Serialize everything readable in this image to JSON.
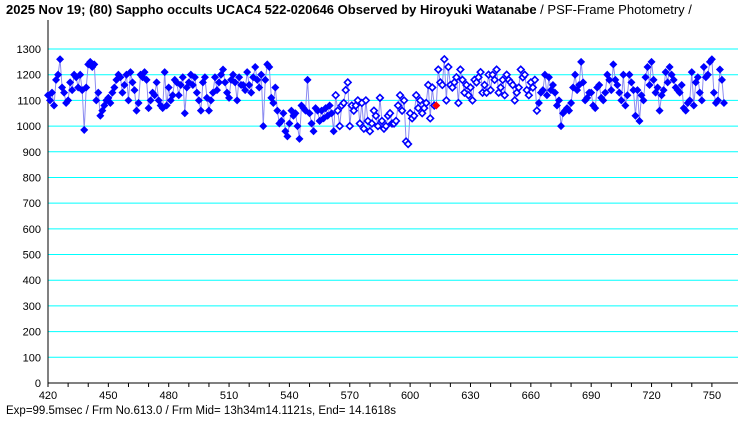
{
  "header": {
    "title_main": "2025 Nov 19; (80) Sappho occults UCAC4 522-020646 Observed by Hiroyuki Watanabe",
    "title_sub": " / PSF-Frame Photometry /"
  },
  "footer": {
    "text": "Exp=99.5msec / Frm No.613.0 / Frm Mid= 13h34m14.1121s,  End= 14.1618s"
  },
  "colors": {
    "grid": "#00ffff",
    "marker": "#0000ff",
    "line": "#8c8cf0",
    "highlight": "#ff0000",
    "axis": "#000000"
  },
  "chart_data": {
    "type": "line",
    "title": "2025 Nov 19; (80) Sappho occults UCAC4 522-020646",
    "xlabel": "",
    "ylabel": "",
    "xlim": [
      420,
      759
    ],
    "ylim": [
      0,
      1300
    ],
    "grid": true,
    "xticks": [
      420,
      450,
      480,
      510,
      540,
      570,
      600,
      630,
      660,
      690,
      720,
      750
    ],
    "yticks": [
      0,
      100,
      200,
      300,
      400,
      500,
      600,
      700,
      800,
      900,
      1000,
      1100,
      1200,
      1300
    ],
    "x_start": 420,
    "open_marker_range": [
      563,
      663
    ],
    "highlight_frame": 613,
    "values": [
      1120,
      1100,
      1130,
      1080,
      1180,
      1200,
      1260,
      1150,
      1130,
      1090,
      1100,
      1170,
      1140,
      1200,
      1190,
      1150,
      1200,
      1140,
      985,
      1150,
      1240,
      1250,
      1230,
      1240,
      1100,
      1130,
      1040,
      1060,
      1080,
      1100,
      1110,
      1090,
      1130,
      1150,
      1180,
      1200,
      1190,
      1130,
      1160,
      1200,
      1100,
      1210,
      1170,
      1140,
      1060,
      1090,
      1200,
      1190,
      1210,
      1180,
      1070,
      1100,
      1130,
      1120,
      1170,
      1100,
      1080,
      1070,
      1210,
      1080,
      1150,
      1100,
      1120,
      1180,
      1170,
      1120,
      1160,
      1190,
      1050,
      1150,
      1170,
      1200,
      1160,
      1190,
      1130,
      1100,
      1060,
      1170,
      1190,
      1110,
      1060,
      1100,
      1130,
      1190,
      1140,
      1170,
      1200,
      1220,
      1170,
      1130,
      1110,
      1180,
      1200,
      1170,
      1100,
      1190,
      1160,
      1160,
      1140,
      1210,
      1160,
      1130,
      1190,
      1230,
      1180,
      1150,
      1200,
      1000,
      1180,
      1240,
      1230,
      1110,
      1090,
      1150,
      1060,
      1010,
      1020,
      1050,
      980,
      960,
      1010,
      1060,
      1040,
      1050,
      1000,
      950,
      1080,
      1070,
      1060,
      1180,
      1050,
      1010,
      980,
      1070,
      1060,
      1020,
      1060,
      1030,
      1070,
      1040,
      1080,
      1050,
      980,
      1120,
      1060,
      1000,
      1080,
      1090,
      1140,
      1170,
      1000,
      1080,
      1060,
      1080,
      1100,
      1010,
      1090,
      990,
      1100,
      1020,
      980,
      1010,
      1060,
      1040,
      1000,
      1110,
      1020,
      990,
      1000,
      1040,
      1050,
      1010,
      1010,
      1020,
      1080,
      1120,
      1060,
      1100,
      940,
      930,
      1050,
      1030,
      1040,
      1120,
      1070,
      1100,
      1050,
      1070,
      1090,
      1160,
      1030,
      1150,
      1080,
      1080,
      1220,
      1170,
      1160,
      1260,
      1100,
      1230,
      1160,
      1150,
      1170,
      1190,
      1090,
      1220,
      1180,
      1130,
      1160,
      1120,
      1150,
      1100,
      1180,
      1170,
      1190,
      1210,
      1130,
      1160,
      1130,
      1200,
      1140,
      1200,
      1180,
      1220,
      1130,
      1150,
      1180,
      1120,
      1200,
      1180,
      1170,
      1160,
      1100,
      1130,
      1150,
      1220,
      1190,
      1200,
      1140,
      1120,
      1170,
      1150,
      1180,
      1060,
      1090,
      1130,
      1140,
      1200,
      1120,
      1190,
      1140,
      1160,
      1130,
      1080,
      1100,
      1000,
      1050,
      1060,
      1070,
      1060,
      1090,
      1150,
      1200,
      1140,
      1160,
      1250,
      1170,
      1100,
      1110,
      1130,
      1130,
      1080,
      1070,
      1150,
      1160,
      1110,
      1100,
      1130,
      1200,
      1180,
      1140,
      1240,
      1180,
      1160,
      1130,
      1100,
      1200,
      1080,
      1120,
      1200,
      1170,
      1140,
      1040,
      1140,
      1020,
      1120,
      1100,
      1190,
      1230,
      1160,
      1250,
      1180,
      1130,
      1150,
      1060,
      1120,
      1140,
      1210,
      1170,
      1230,
      1200,
      1180,
      1150,
      1140,
      1130,
      1160,
      1070,
      1060,
      1090,
      1100,
      1210,
      1080,
      1170,
      1190,
      1130,
      1100,
      1230,
      1190,
      1200,
      1250,
      1260,
      1130,
      1090,
      1100,
      1220,
      1180,
      1090
    ]
  }
}
